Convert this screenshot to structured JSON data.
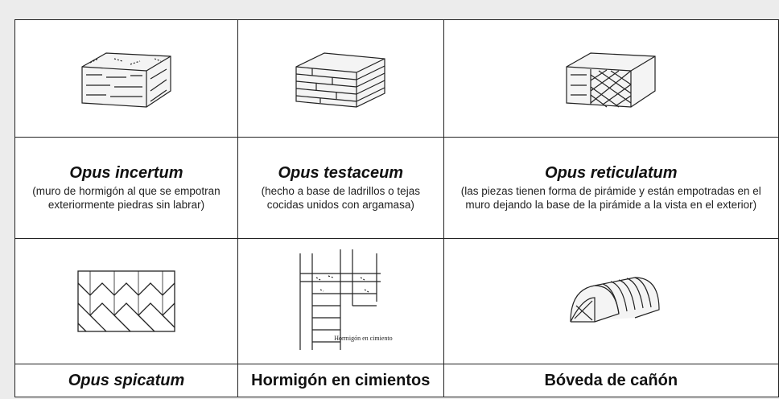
{
  "table": {
    "rows": [
      [
        {
          "title": "Opus incertum",
          "description": "(muro de hormigón al que se empotran exteriormente piedras sin labrar)"
        },
        {
          "title": "Opus testaceum",
          "description": "(hecho a base de ladrillos o tejas cocidas unidos con argamasa)"
        },
        {
          "title": "Opus reticulatum",
          "description": "(las piezas tienen forma de pirámide y están empotradas en el muro dejando la base de la pirámide a la vista en el exterior)"
        }
      ],
      [
        {
          "title": "Opus spicatum"
        },
        {
          "title": "Hormigón en cimientos"
        },
        {
          "title": "Bóveda de cañón"
        }
      ]
    ]
  },
  "illustration_caption": "Hormigón en cimientos"
}
